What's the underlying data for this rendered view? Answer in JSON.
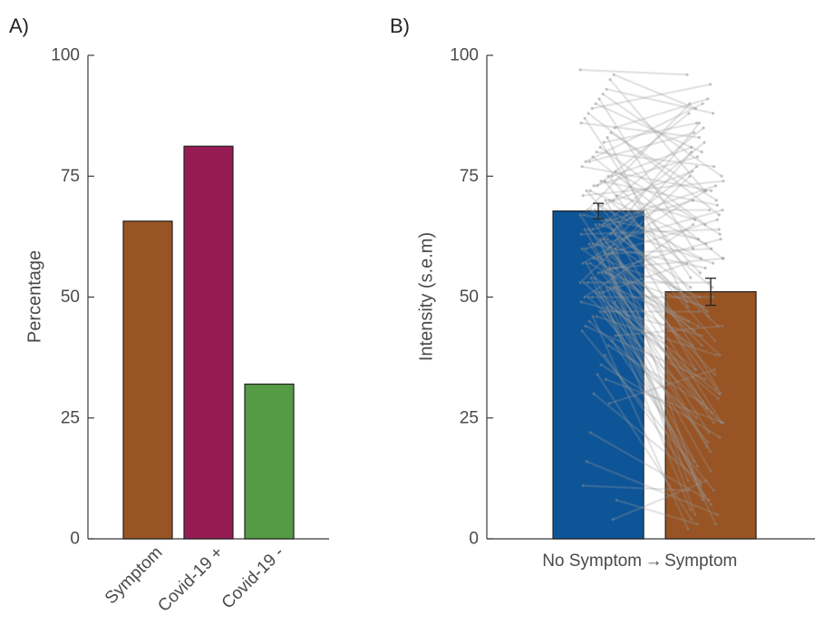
{
  "chart_data": [
    {
      "panel": "A)",
      "type": "bar",
      "ylabel": "Percentage",
      "xlabel": "",
      "ylim": [
        0,
        100
      ],
      "yticks": [
        0,
        25,
        50,
        75,
        100
      ],
      "categories": [
        "Symptom",
        "Covid-19 +",
        "Covid-19 -"
      ],
      "values": [
        65.7,
        81.2,
        32.0
      ],
      "colors": [
        "#985424",
        "#961b52",
        "#559a44"
      ]
    },
    {
      "panel": "B)",
      "type": "bar",
      "ylabel": "Intensity (s.e.m)",
      "xlabel": "",
      "ylim": [
        0,
        100
      ],
      "yticks": [
        0,
        25,
        50,
        75,
        100
      ],
      "categories": [
        "No Symptom",
        "Symptom"
      ],
      "arrow": "→",
      "values": [
        67.8,
        51.1
      ],
      "errors": [
        1.6,
        2.8
      ],
      "colors": [
        "#0e5597",
        "#985424"
      ],
      "paired_lines_color": "#9a9a9a",
      "paired_lines": [
        [
          97,
          96
        ],
        [
          96,
          89
        ],
        [
          95,
          72
        ],
        [
          93,
          88
        ],
        [
          92,
          75
        ],
        [
          91,
          60
        ],
        [
          90,
          80
        ],
        [
          89,
          94
        ],
        [
          88,
          67
        ],
        [
          87,
          54
        ],
        [
          86,
          83
        ],
        [
          85,
          91
        ],
        [
          84,
          70
        ],
        [
          83,
          48
        ],
        [
          82,
          86
        ],
        [
          81,
          65
        ],
        [
          80,
          77
        ],
        [
          79,
          58
        ],
        [
          78,
          84
        ],
        [
          78,
          90
        ],
        [
          77,
          72
        ],
        [
          76,
          63
        ],
        [
          75,
          81
        ],
        [
          75,
          55
        ],
        [
          74,
          46
        ],
        [
          74,
          69
        ],
        [
          73,
          88
        ],
        [
          73,
          79
        ],
        [
          72,
          61
        ],
        [
          72,
          41
        ],
        [
          71,
          74
        ],
        [
          71,
          66
        ],
        [
          70,
          85
        ],
        [
          70,
          52
        ],
        [
          70,
          30
        ],
        [
          69,
          76
        ],
        [
          69,
          58
        ],
        [
          68,
          68
        ],
        [
          68,
          44
        ],
        [
          68,
          90
        ],
        [
          67,
          62
        ],
        [
          67,
          27
        ],
        [
          66,
          73
        ],
        [
          66,
          49
        ],
        [
          66,
          35
        ],
        [
          65,
          82
        ],
        [
          65,
          57
        ],
        [
          65,
          24
        ],
        [
          64,
          70
        ],
        [
          64,
          40
        ],
        [
          64,
          18
        ],
        [
          63,
          64
        ],
        [
          63,
          52
        ],
        [
          63,
          86
        ],
        [
          62,
          47
        ],
        [
          62,
          31
        ],
        [
          62,
          12
        ],
        [
          61,
          77
        ],
        [
          61,
          56
        ],
        [
          61,
          24
        ],
        [
          60,
          68
        ],
        [
          60,
          43
        ],
        [
          60,
          8
        ],
        [
          59,
          60
        ],
        [
          59,
          38
        ],
        [
          59,
          80
        ],
        [
          58,
          50
        ],
        [
          58,
          22
        ],
        [
          58,
          66
        ],
        [
          57,
          45
        ],
        [
          57,
          15
        ],
        [
          57,
          72
        ],
        [
          56,
          34
        ],
        [
          56,
          58
        ],
        [
          56,
          5
        ],
        [
          55,
          48
        ],
        [
          55,
          26
        ],
        [
          55,
          62
        ],
        [
          54,
          40
        ],
        [
          54,
          11
        ],
        [
          53,
          53
        ],
        [
          53,
          29
        ],
        [
          53,
          75
        ],
        [
          52,
          44
        ],
        [
          52,
          19
        ],
        [
          52,
          3
        ],
        [
          51,
          57
        ],
        [
          51,
          35
        ],
        [
          51,
          9
        ],
        [
          50,
          50
        ],
        [
          50,
          24
        ],
        [
          50,
          65
        ],
        [
          49,
          42
        ],
        [
          49,
          14
        ],
        [
          48,
          30
        ],
        [
          48,
          6
        ],
        [
          47,
          47
        ],
        [
          47,
          20
        ],
        [
          46,
          38
        ],
        [
          46,
          2
        ],
        [
          45,
          25
        ],
        [
          44,
          33
        ],
        [
          43,
          10
        ],
        [
          42,
          44
        ],
        [
          41,
          16
        ],
        [
          40,
          28
        ],
        [
          38,
          7
        ],
        [
          36,
          21
        ],
        [
          34,
          4
        ],
        [
          30,
          12
        ],
        [
          22,
          8
        ],
        [
          16,
          5
        ],
        [
          11,
          10
        ],
        [
          8,
          3
        ],
        [
          4,
          12
        ],
        [
          28,
          35
        ],
        [
          33,
          24
        ]
      ]
    }
  ]
}
